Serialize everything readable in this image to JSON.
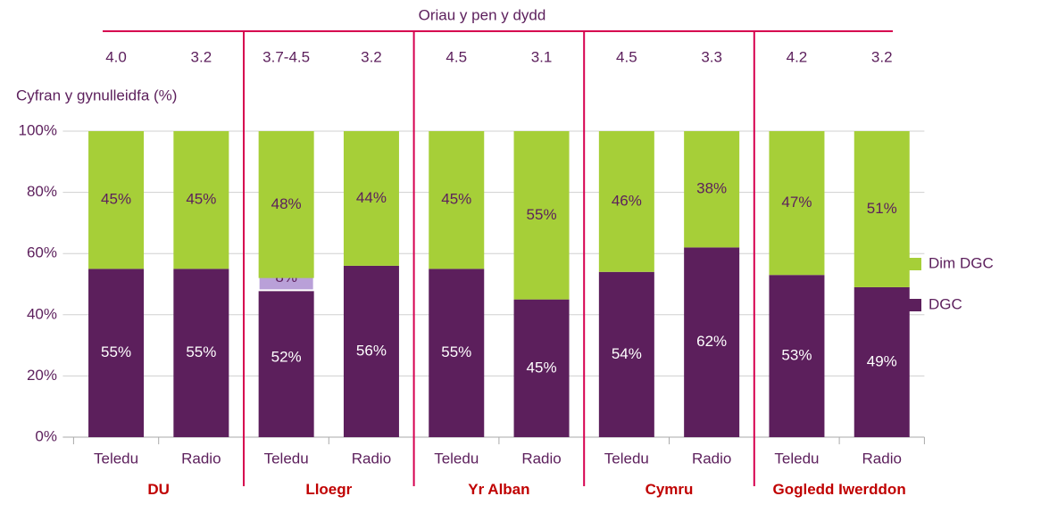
{
  "chart_data": {
    "type": "stacked_bar",
    "title": "Oriau y pen y dydd",
    "y_label": "Cyfran y gynulleidfa (%)",
    "categories": [
      "Teledu",
      "Radio",
      "Teledu",
      "Radio",
      "Teledu",
      "Radio",
      "Teledu",
      "Radio",
      "Teledu",
      "Radio"
    ],
    "groups": [
      "DU",
      "Lloegr",
      "Yr Alban",
      "Cymru",
      "Gogledd Iwerddon"
    ],
    "hours": [
      "4.0",
      "3.2",
      "3.7-4.5",
      "3.2",
      "4.5",
      "3.1",
      "4.5",
      "3.3",
      "4.2",
      "3.2"
    ],
    "series": [
      {
        "name": "DGC",
        "color": "#5c1f5c",
        "values": [
          55,
          55,
          52,
          56,
          55,
          45,
          54,
          62,
          53,
          49
        ],
        "value_labels": [
          "55%",
          "55%",
          "52%",
          "56%",
          "55%",
          "45%",
          "54%",
          "62%",
          "53%",
          "49%"
        ]
      },
      {
        "name": "Dim DGC",
        "color": "#a6cf38",
        "values": [
          45,
          45,
          48,
          44,
          45,
          55,
          46,
          38,
          47,
          51
        ],
        "value_labels": [
          "45%",
          "45%",
          "48%",
          "44%",
          "45%",
          "55%",
          "46%",
          "38%",
          "47%",
          "51%"
        ]
      }
    ],
    "ranges": [
      null,
      null,
      8,
      null,
      null,
      null,
      null,
      null,
      null,
      null
    ],
    "range_labels": [
      null,
      null,
      "8%",
      null,
      null,
      null,
      null,
      null,
      null,
      null
    ],
    "range_color": "#b9a0d8",
    "ylim": [
      0,
      100
    ],
    "yticks": [
      {
        "value": 0,
        "label": "0%"
      },
      {
        "value": 20,
        "label": "20%"
      },
      {
        "value": 40,
        "label": "40%"
      },
      {
        "value": 60,
        "label": "60%"
      },
      {
        "value": 80,
        "label": "80%"
      },
      {
        "value": 100,
        "label": "100%"
      }
    ],
    "grid": true,
    "legend": "right"
  }
}
